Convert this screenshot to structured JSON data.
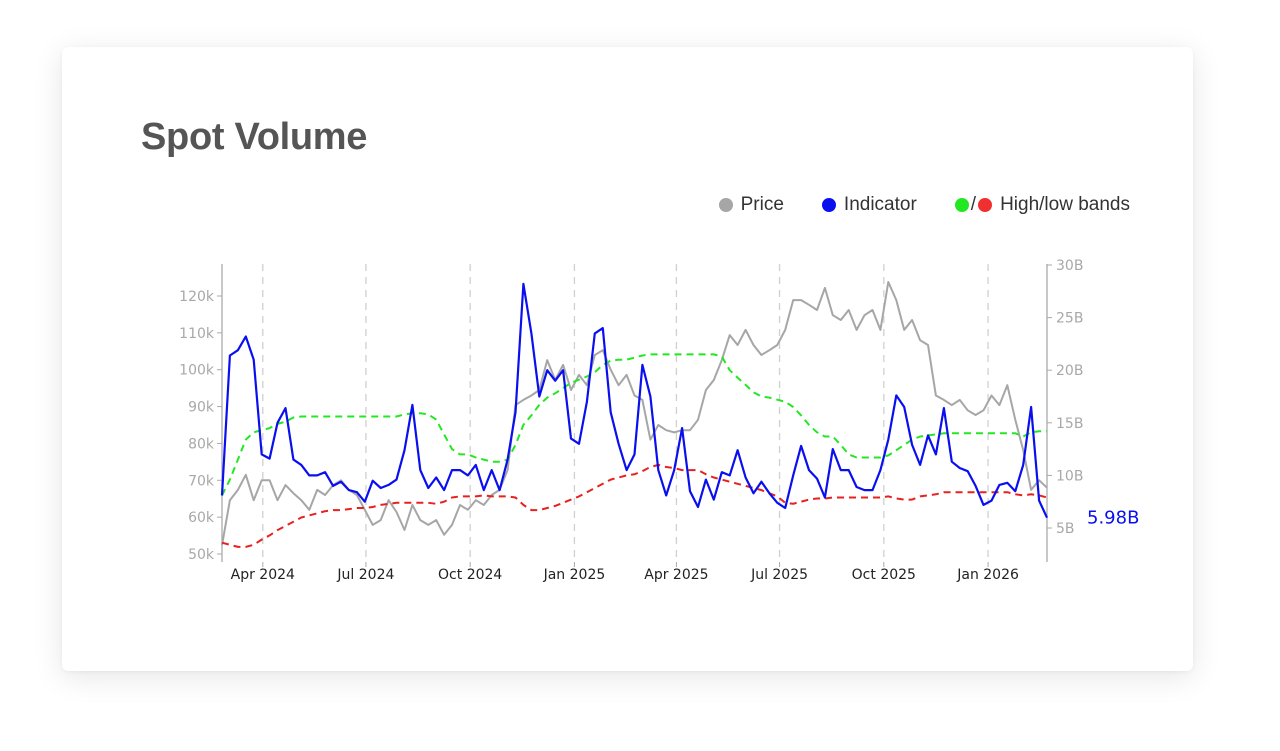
{
  "title": "Spot Volume",
  "legend": {
    "price": "Price",
    "indicator": "Indicator",
    "bands_sep": "/",
    "bands": "High/low bands"
  },
  "colors": {
    "price": "#a6a6a6",
    "indicator": "#0a0ff0",
    "high": "#22e822",
    "low": "#e82020",
    "axis": "#aaaaaa",
    "grid": "#d0d0d0"
  },
  "chart_data": {
    "type": "line",
    "title": "Spot Volume",
    "x_start": "2024-02-25",
    "x_step_days": 7,
    "x_end": "2026-02-22",
    "left_axis": {
      "unit": "k",
      "ylim": [
        50,
        120
      ],
      "ticks": [
        {
          "v": 50,
          "label": "50k"
        },
        {
          "v": 60,
          "label": "60k"
        },
        {
          "v": 70,
          "label": "70k"
        },
        {
          "v": 80,
          "label": "80k"
        },
        {
          "v": 90,
          "label": "90k"
        },
        {
          "v": 100,
          "label": "100k"
        },
        {
          "v": 110,
          "label": "110k"
        },
        {
          "v": 120,
          "label": "120k"
        }
      ]
    },
    "right_axis": {
      "unit": "B",
      "ylim": [
        5,
        30
      ],
      "ticks": [
        {
          "v": 5,
          "label": "5B"
        },
        {
          "v": 10,
          "label": "10B"
        },
        {
          "v": 15,
          "label": "15B"
        },
        {
          "v": 20,
          "label": "20B"
        },
        {
          "v": 25,
          "label": "25B"
        },
        {
          "v": 30,
          "label": "30B"
        }
      ]
    },
    "x_ticks": [
      {
        "date": "2024-04-01",
        "label": "Apr 2024"
      },
      {
        "date": "2024-07-01",
        "label": "Jul 2024"
      },
      {
        "date": "2024-10-01",
        "label": "Oct 2024"
      },
      {
        "date": "2025-01-01",
        "label": "Jan 2025"
      },
      {
        "date": "2025-04-01",
        "label": "Apr 2025"
      },
      {
        "date": "2025-07-01",
        "label": "Jul 2025"
      },
      {
        "date": "2025-10-01",
        "label": "Oct 2025"
      },
      {
        "date": "2026-01-01",
        "label": "Jan 2026"
      }
    ],
    "grid": "vertical dashed at x ticks",
    "legend_position": "top-right",
    "last_value_label": "5.98B",
    "series": [
      {
        "name": "Price",
        "axis": "left",
        "values": [
          52.4,
          64.6,
          67.4,
          71.5,
          64.6,
          70,
          70,
          64.6,
          68.7,
          66.5,
          64.6,
          62,
          67.4,
          66,
          68.7,
          70,
          67.4,
          66,
          62,
          57.9,
          59.2,
          64.6,
          61.4,
          56.5,
          63.3,
          59.2,
          57.9,
          59.2,
          55.2,
          57.9,
          63.3,
          62,
          64.6,
          63.3,
          66,
          67.4,
          72.8,
          90.4,
          91.8,
          93,
          94.5,
          102.6,
          97.2,
          101.3,
          94.5,
          98.6,
          95.8,
          104,
          105.3,
          100,
          95.8,
          98.6,
          93,
          91.8,
          81,
          85,
          83.6,
          83,
          83.6,
          83.6,
          86.4,
          94.5,
          97.2,
          102.6,
          109.4,
          106.7,
          110.8,
          106.7,
          104,
          105.3,
          106.7,
          110.8,
          118.9,
          118.9,
          117.6,
          116.2,
          122.2,
          114.8,
          113.5,
          116.2,
          110.8,
          114.8,
          116.2,
          110.8,
          123.8,
          118.9,
          110.8,
          113.5,
          108,
          106.7,
          93,
          91.8,
          90.4,
          91.8,
          89,
          87.7,
          89,
          93,
          90.4,
          95.8,
          86.4,
          78.2,
          67.4,
          70,
          68
        ]
      },
      {
        "name": "Indicator",
        "axis": "right",
        "values": [
          8.1,
          21.4,
          21.9,
          23.2,
          21,
          12,
          11.6,
          15,
          16.4,
          11.5,
          11,
          10,
          10,
          10.3,
          9,
          9.4,
          8.6,
          8.4,
          7.5,
          9.5,
          8.8,
          9.1,
          9.6,
          12.4,
          16.7,
          10.5,
          8.8,
          9.8,
          8.6,
          10.5,
          10.5,
          10,
          11,
          8.6,
          10.5,
          8.6,
          11.5,
          16,
          28.2,
          23.5,
          17.5,
          20,
          19,
          20,
          13.5,
          13,
          17,
          23.5,
          24,
          16,
          13,
          10.5,
          12,
          20.5,
          17.5,
          10.5,
          8.1,
          10.5,
          14.5,
          8.5,
          7,
          9.6,
          7.7,
          10.3,
          10,
          12.4,
          9.8,
          8.3,
          9.4,
          8.3,
          7.4,
          6.9,
          10,
          12.8,
          10.5,
          9.7,
          7.9,
          12.5,
          10.5,
          10.5,
          8.9,
          8.6,
          8.6,
          10.5,
          13.4,
          17.6,
          16.5,
          12.9,
          11,
          13.8,
          12,
          16.4,
          11.3,
          10.7,
          10.4,
          9,
          7.2,
          7.6,
          9.1,
          9.3,
          8.5,
          11,
          16.5,
          7.6,
          5.98
        ]
      },
      {
        "name": "High band",
        "axis": "right",
        "values": [
          8.1,
          9.6,
          11.5,
          13.4,
          14.1,
          14.3,
          14.5,
          14.9,
          15.1,
          15.5,
          15.6,
          15.6,
          15.6,
          15.6,
          15.6,
          15.6,
          15.6,
          15.6,
          15.6,
          15.6,
          15.6,
          15.6,
          15.6,
          15.8,
          15.9,
          15.9,
          15.8,
          15.3,
          13.9,
          12.5,
          12,
          12,
          11.7,
          11.5,
          11.3,
          11.3,
          11.5,
          12.9,
          14.8,
          15.7,
          16.7,
          17.4,
          17.8,
          18.3,
          18.8,
          19.1,
          19.4,
          19.8,
          20.5,
          20.9,
          21,
          21,
          21.2,
          21.4,
          21.5,
          21.5,
          21.5,
          21.5,
          21.5,
          21.5,
          21.5,
          21.5,
          21.5,
          21.3,
          20,
          19.3,
          18.6,
          17.9,
          17.5,
          17.4,
          17.2,
          17,
          16.5,
          15.7,
          14.8,
          14.1,
          13.7,
          13.7,
          12.9,
          12,
          11.7,
          11.7,
          11.7,
          11.7,
          11.9,
          12.4,
          12.9,
          13.4,
          13.7,
          13.8,
          13.9,
          14,
          14,
          14,
          14,
          14,
          14,
          14,
          14,
          14,
          14,
          13.7,
          14.1,
          14.2,
          14.2
        ]
      },
      {
        "name": "Low band",
        "axis": "right",
        "values": [
          3.6,
          3.4,
          3.2,
          3.2,
          3.4,
          3.9,
          4.3,
          4.8,
          5.2,
          5.6,
          6,
          6.2,
          6.4,
          6.6,
          6.7,
          6.7,
          6.8,
          6.9,
          6.9,
          7,
          7.2,
          7.3,
          7.4,
          7.4,
          7.4,
          7.4,
          7.4,
          7.3,
          7.5,
          7.9,
          8,
          8,
          8,
          8.1,
          8,
          8,
          8,
          7.9,
          7.2,
          6.7,
          6.7,
          6.9,
          7.1,
          7.4,
          7.7,
          8,
          8.4,
          8.8,
          9.2,
          9.6,
          9.8,
          10,
          10.1,
          10.4,
          10.8,
          11,
          10.8,
          10.7,
          10.5,
          10.5,
          10.5,
          10.1,
          9.8,
          9.6,
          9.4,
          9.2,
          9,
          8.8,
          8.6,
          8.3,
          8,
          7.4,
          7.3,
          7.5,
          7.7,
          7.8,
          7.8,
          7.9,
          7.9,
          7.9,
          7.9,
          7.9,
          7.9,
          7.9,
          8,
          7.8,
          7.7,
          7.7,
          8,
          8.1,
          8.2,
          8.4,
          8.4,
          8.4,
          8.4,
          8.4,
          8.4,
          8.4,
          8.4,
          8.4,
          8.2,
          8.1,
          8.2,
          8.1,
          7.9
        ]
      }
    ]
  }
}
